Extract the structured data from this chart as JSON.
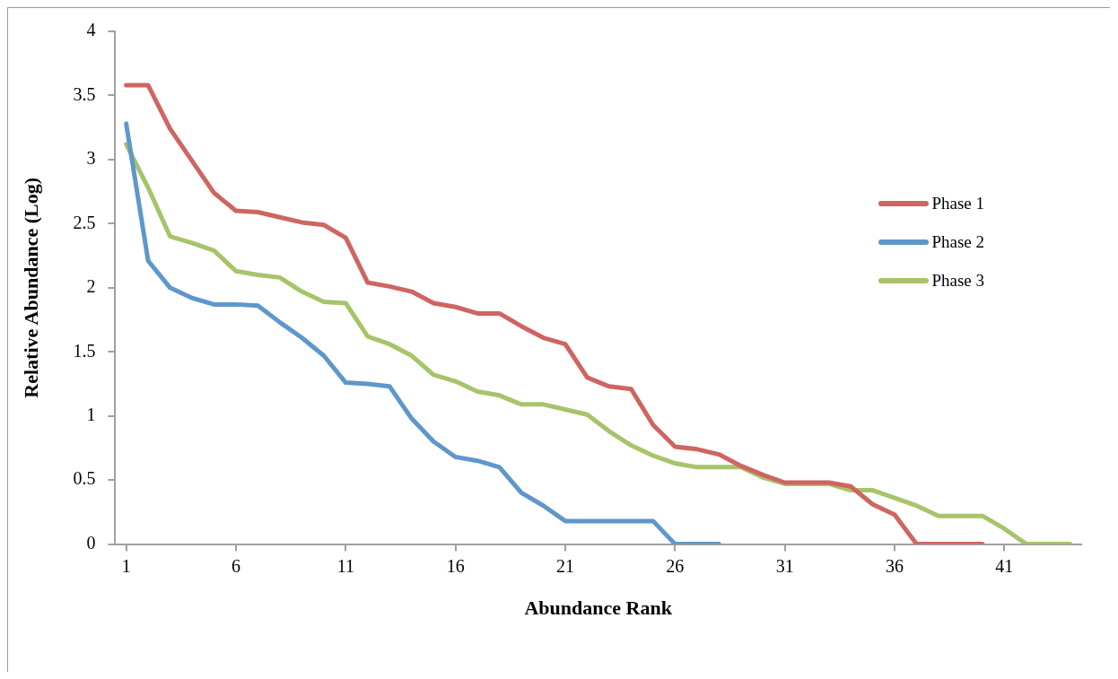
{
  "chart_data": {
    "type": "line",
    "xlabel": "Abundance Rank",
    "ylabel": "Relative Abundance (Log)",
    "x": [
      1,
      2,
      3,
      4,
      5,
      6,
      7,
      8,
      9,
      10,
      11,
      12,
      13,
      14,
      15,
      16,
      17,
      18,
      19,
      20,
      21,
      22,
      23,
      24,
      25,
      26,
      27,
      28,
      29,
      30,
      31,
      32,
      33,
      34,
      35,
      36,
      37,
      38,
      39,
      40,
      41,
      42,
      43,
      44
    ],
    "xlim": [
      0.5,
      44.5
    ],
    "xticks": [
      1,
      6,
      11,
      16,
      21,
      26,
      31,
      36,
      41
    ],
    "series": [
      {
        "name": "Phase 1",
        "color": "#cf6560",
        "values": [
          3.58,
          3.58,
          3.24,
          2.99,
          2.74,
          2.6,
          2.59,
          2.55,
          2.51,
          2.49,
          2.39,
          2.04,
          2.01,
          1.97,
          1.88,
          1.85,
          1.8,
          1.8,
          1.7,
          1.61,
          1.56,
          1.3,
          1.23,
          1.21,
          0.93,
          0.76,
          0.74,
          0.7,
          0.61,
          0.54,
          0.48,
          0.48,
          0.48,
          0.45,
          0.31,
          0.23,
          0,
          0,
          0,
          0,
          null,
          null,
          null,
          null
        ]
      },
      {
        "name": "Phase 2",
        "color": "#5f97cb",
        "values": [
          3.28,
          2.21,
          2.0,
          1.92,
          1.87,
          1.87,
          1.86,
          1.73,
          1.61,
          1.47,
          1.26,
          1.25,
          1.23,
          0.98,
          0.8,
          0.68,
          0.65,
          0.6,
          0.4,
          0.3,
          0.18,
          0.18,
          0.18,
          0.18,
          0.18,
          0,
          0,
          0,
          null,
          null,
          null,
          null,
          null,
          null,
          null,
          null,
          null,
          null,
          null,
          null,
          null,
          null,
          null,
          null
        ]
      },
      {
        "name": "Phase 3",
        "color": "#a6c46a",
        "values": [
          3.12,
          2.78,
          2.4,
          2.35,
          2.29,
          2.13,
          2.1,
          2.08,
          1.97,
          1.89,
          1.88,
          1.62,
          1.56,
          1.47,
          1.32,
          1.27,
          1.19,
          1.16,
          1.09,
          1.09,
          1.05,
          1.01,
          0.88,
          0.77,
          0.69,
          0.63,
          0.6,
          0.6,
          0.6,
          0.52,
          0.47,
          0.47,
          0.47,
          0.42,
          0.42,
          0.36,
          0.3,
          0.22,
          0.22,
          0.22,
          0.12,
          0,
          0,
          0
        ]
      }
    ],
    "ylim": [
      0,
      4
    ],
    "yticks": [
      0,
      0.5,
      1,
      1.5,
      2,
      2.5,
      3,
      3.5,
      4
    ],
    "legend": "right",
    "marker": "none",
    "line_style": "solid"
  }
}
